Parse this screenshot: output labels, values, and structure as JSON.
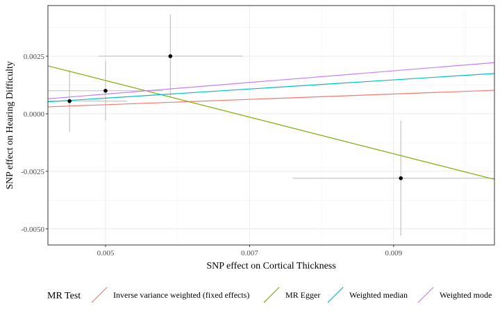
{
  "chart_data": {
    "type": "scatter",
    "xlabel": "SNP effect on Cortical Thickness",
    "ylabel": "SNP effect on Hearing Difficulty",
    "xlim": [
      0.0042,
      0.0104
    ],
    "ylim": [
      -0.0057,
      0.0047
    ],
    "x_ticks": [
      0.005,
      0.007,
      0.009
    ],
    "x_tick_labels": [
      "0.005",
      "0.007",
      "0.009"
    ],
    "y_ticks": [
      0.0025,
      0,
      -0.0025,
      -0.005
    ],
    "y_tick_labels": [
      "0.0025",
      "0.0000",
      "-0.0025",
      "-0.0050"
    ],
    "grid": true,
    "legend_position": "bottom",
    "points": [
      {
        "x": 0.0045,
        "y": 0.00055,
        "x_lo": 0.0037,
        "x_hi": 0.0053,
        "y_lo": -0.0008,
        "y_hi": 0.0019
      },
      {
        "x": 0.005,
        "y": 0.001,
        "x_lo": 0.0042,
        "x_hi": 0.0058,
        "y_lo": -0.0003,
        "y_hi": 0.0023
      },
      {
        "x": 0.0059,
        "y": 0.0025,
        "x_lo": 0.0049,
        "x_hi": 0.0069,
        "y_lo": 0.0007,
        "y_hi": 0.0043
      },
      {
        "x": 0.0091,
        "y": -0.0028,
        "x_lo": 0.0076,
        "x_hi": 0.0107,
        "y_lo": -0.0053,
        "y_hi": -0.0003
      }
    ],
    "legend_title": "MR Test",
    "lines": [
      {
        "name": "Inverse variance weighted (fixed effects)",
        "color": "#F8766D",
        "x": [
          0.0042,
          0.0104
        ],
        "y": [
          0.0003,
          0.00102
        ]
      },
      {
        "name": "MR Egger",
        "color": "#7CAE00",
        "x": [
          0.0042,
          0.0104
        ],
        "y": [
          0.00208,
          -0.00285
        ]
      },
      {
        "name": "Weighted median",
        "color": "#00BFC4",
        "x": [
          0.0042,
          0.0104
        ],
        "y": [
          0.00052,
          0.00175
        ]
      },
      {
        "name": "Weighted mode",
        "color": "#C77CFF",
        "x": [
          0.0042,
          0.0104
        ],
        "y": [
          0.00065,
          0.00222
        ]
      }
    ]
  }
}
